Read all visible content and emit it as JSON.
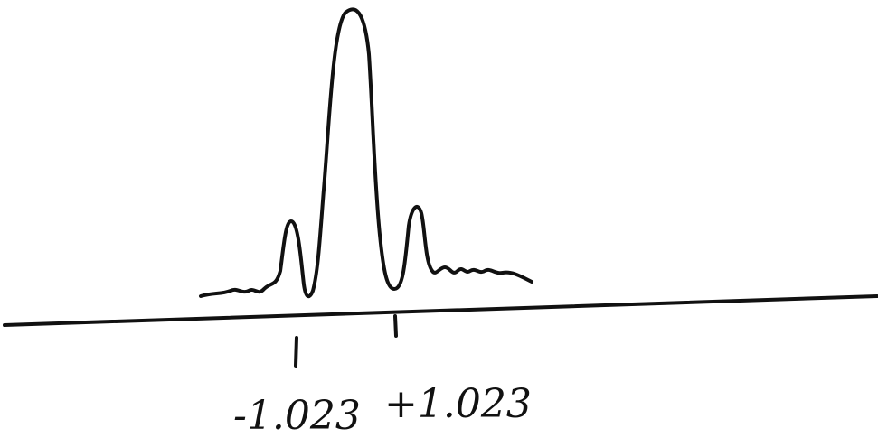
{
  "tick_labels": [
    "-1.023",
    "+1.023"
  ]
}
